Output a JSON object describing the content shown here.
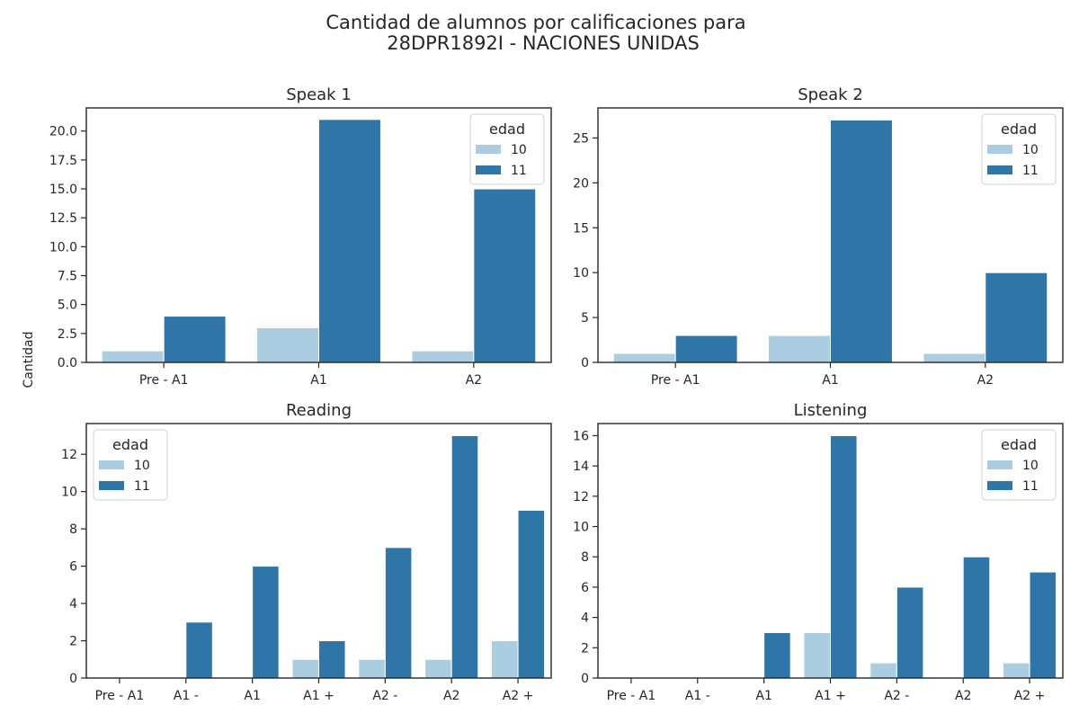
{
  "figure": {
    "title_line1": "Cantidad de alumnos por calificaciones para",
    "title_line2": "28DPR1892I - NACIONES UNIDAS",
    "ylabel": "Cantidad"
  },
  "colors": {
    "10": "#abcde2",
    "11": "#2e75a8"
  },
  "chart_data": [
    {
      "type": "bar",
      "title": "Speak 1",
      "categories": [
        "Pre - A1",
        "A1",
        "A2"
      ],
      "series": [
        {
          "name": "10",
          "values": [
            1,
            3,
            1
          ]
        },
        {
          "name": "11",
          "values": [
            4,
            21,
            15
          ]
        }
      ],
      "ylim": [
        0,
        22
      ],
      "yticks": [
        "0.0",
        "2.5",
        "5.0",
        "7.5",
        "10.0",
        "12.5",
        "15.0",
        "17.5",
        "20.0"
      ],
      "ytick_values": [
        0,
        2.5,
        5,
        7.5,
        10,
        12.5,
        15,
        17.5,
        20
      ],
      "legend": {
        "title": "edad",
        "position": "top-right"
      }
    },
    {
      "type": "bar",
      "title": "Speak 2",
      "categories": [
        "Pre - A1",
        "A1",
        "A2"
      ],
      "series": [
        {
          "name": "10",
          "values": [
            1,
            3,
            1
          ]
        },
        {
          "name": "11",
          "values": [
            3,
            27,
            10
          ]
        }
      ],
      "ylim": [
        0,
        28.35
      ],
      "yticks": [
        "0",
        "5",
        "10",
        "15",
        "20",
        "25"
      ],
      "ytick_values": [
        0,
        5,
        10,
        15,
        20,
        25
      ],
      "legend": {
        "title": "edad",
        "position": "top-right"
      }
    },
    {
      "type": "bar",
      "title": "Reading",
      "categories": [
        "Pre - A1",
        "A1 -",
        "A1",
        "A1 +",
        "A2 -",
        "A2",
        "A2 +"
      ],
      "series": [
        {
          "name": "10",
          "values": [
            0,
            0,
            0,
            1,
            1,
            1,
            2
          ]
        },
        {
          "name": "11",
          "values": [
            0,
            3,
            6,
            2,
            7,
            13,
            9
          ]
        }
      ],
      "ylim": [
        0,
        13.65
      ],
      "yticks": [
        "0",
        "2",
        "4",
        "6",
        "8",
        "10",
        "12"
      ],
      "ytick_values": [
        0,
        2,
        4,
        6,
        8,
        10,
        12
      ],
      "legend": {
        "title": "edad",
        "position": "top-left"
      }
    },
    {
      "type": "bar",
      "title": "Listening",
      "categories": [
        "Pre - A1",
        "A1 -",
        "A1",
        "A1 +",
        "A2 -",
        "A2",
        "A2 +"
      ],
      "series": [
        {
          "name": "10",
          "values": [
            0,
            0,
            0,
            3,
            1,
            0,
            1
          ]
        },
        {
          "name": "11",
          "values": [
            0,
            0,
            3,
            16,
            6,
            8,
            7
          ]
        }
      ],
      "ylim": [
        0,
        16.8
      ],
      "yticks": [
        "0",
        "2",
        "4",
        "6",
        "8",
        "10",
        "12",
        "14",
        "16"
      ],
      "ytick_values": [
        0,
        2,
        4,
        6,
        8,
        10,
        12,
        14,
        16
      ],
      "legend": {
        "title": "edad",
        "position": "top-right"
      }
    }
  ]
}
